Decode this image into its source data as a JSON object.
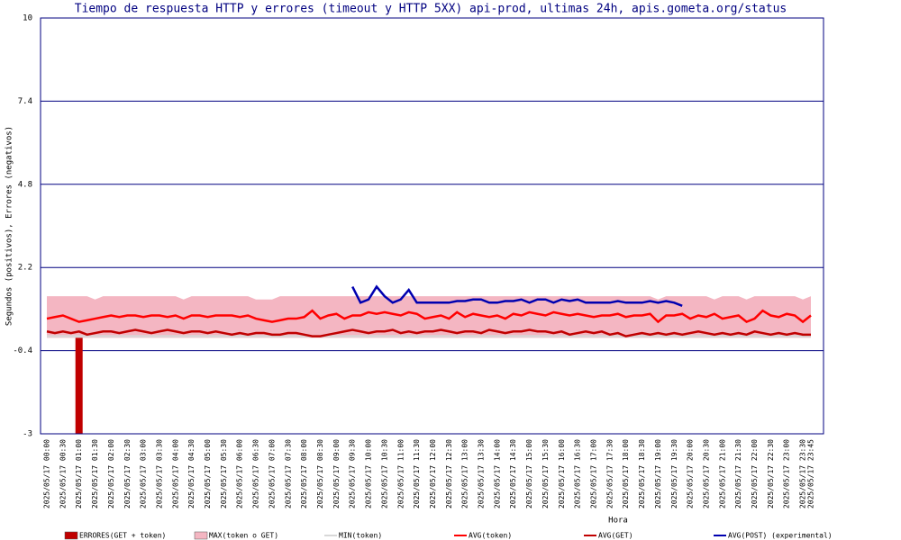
{
  "chart_data": {
    "type": "line",
    "title": "Tiempo de respuesta HTTP y errores (timeout y HTTP 5XX) api-prod, ultimas 24h, apis.gometa.org/status",
    "ylabel": "Segundos (positivos), Errores (negativos)",
    "xlabel": "Hora",
    "ylim": [
      -3,
      10
    ],
    "yticks": [
      -3,
      -0.4,
      2.2,
      4.8,
      7.4,
      10
    ],
    "grid": true,
    "categories": [
      "2025/05/17 00:00",
      null,
      "2025/05/17 00:30",
      null,
      "2025/05/17 01:00",
      null,
      "2025/05/17 01:30",
      null,
      "2025/05/17 02:00",
      null,
      "2025/05/17 02:30",
      null,
      "2025/05/17 03:00",
      null,
      "2025/05/17 03:30",
      null,
      "2025/05/17 04:00",
      null,
      "2025/05/17 04:30",
      null,
      "2025/05/17 05:00",
      null,
      "2025/05/17 05:30",
      null,
      "2025/05/17 06:00",
      null,
      "2025/05/17 06:30",
      null,
      "2025/05/17 07:00",
      null,
      "2025/05/17 07:30",
      null,
      "2025/05/17 08:00",
      null,
      "2025/05/17 08:30",
      null,
      "2025/05/17 09:00",
      null,
      "2025/05/17 09:30",
      null,
      "2025/05/17 10:00",
      null,
      "2025/05/17 10:30",
      null,
      "2025/05/17 11:00",
      null,
      "2025/05/17 11:30",
      null,
      "2025/05/17 12:00",
      null,
      "2025/05/17 12:30",
      null,
      "2025/05/17 13:00",
      null,
      "2025/05/17 13:30",
      null,
      "2025/05/17 14:00",
      null,
      "2025/05/17 14:30",
      null,
      "2025/05/17 15:00",
      null,
      "2025/05/17 15:30",
      null,
      "2025/05/17 16:00",
      null,
      "2025/05/17 16:30",
      null,
      "2025/05/17 17:00",
      null,
      "2025/05/17 17:30",
      null,
      "2025/05/17 18:00",
      null,
      "2025/05/17 18:30",
      null,
      "2025/05/17 19:00",
      null,
      "2025/05/17 19:30",
      null,
      "2025/05/17 20:00",
      null,
      "2025/05/17 20:30",
      null,
      "2025/05/17 21:00",
      null,
      "2025/05/17 21:30",
      null,
      "2025/05/17 22:00",
      null,
      "2025/05/17 22:30",
      null,
      "2025/05/17 23:00",
      null,
      "2025/05/17 23:30",
      "2025/05/17 23:45"
    ],
    "series": [
      {
        "name": "ERRORES(GET + token)",
        "mark": "bar",
        "color": "#c00000",
        "values": [
          0,
          0,
          0,
          0,
          -3,
          0,
          0,
          0,
          0,
          0,
          0,
          0,
          0,
          0,
          0,
          0,
          0,
          0,
          0,
          0,
          0,
          0,
          0,
          0,
          0,
          0,
          0,
          0,
          0,
          0,
          0,
          0,
          0,
          0,
          0,
          0,
          0,
          0,
          0,
          0,
          0,
          0,
          0,
          0,
          0,
          0,
          0,
          0,
          0,
          0,
          0,
          0,
          0,
          0,
          0,
          0,
          0,
          0,
          0,
          0,
          0,
          0,
          0,
          0,
          0,
          0,
          0,
          0,
          0,
          0,
          0,
          0,
          0,
          0,
          0,
          0,
          0,
          0,
          0,
          0,
          0,
          0,
          0,
          0,
          0,
          0,
          0,
          0,
          0,
          0,
          0,
          0,
          0,
          0,
          0,
          0
        ]
      },
      {
        "name": "MAX(token o GET)",
        "mark": "area",
        "color": "#f4b6c2",
        "values": [
          1.3,
          1.3,
          1.3,
          1.3,
          1.3,
          1.3,
          1.2,
          1.3,
          1.3,
          1.3,
          1.3,
          1.3,
          1.3,
          1.3,
          1.3,
          1.3,
          1.3,
          1.2,
          1.3,
          1.3,
          1.3,
          1.3,
          1.3,
          1.3,
          1.3,
          1.3,
          1.2,
          1.2,
          1.2,
          1.3,
          1.3,
          1.3,
          1.3,
          1.3,
          1.3,
          1.3,
          1.3,
          1.3,
          1.3,
          1.3,
          1.3,
          1.3,
          1.3,
          1.3,
          1.3,
          1.3,
          1.3,
          1.3,
          1.3,
          1.3,
          1.3,
          1.3,
          1.3,
          1.3,
          1.3,
          1.3,
          1.3,
          1.3,
          1.3,
          1.3,
          1.3,
          1.3,
          1.3,
          1.3,
          1.3,
          1.3,
          1.3,
          1.3,
          1.3,
          1.3,
          1.3,
          1.3,
          1.3,
          1.3,
          1.3,
          1.3,
          1.2,
          1.3,
          1.3,
          1.3,
          1.3,
          1.3,
          1.3,
          1.2,
          1.3,
          1.3,
          1.3,
          1.2,
          1.3,
          1.3,
          1.3,
          1.3,
          1.3,
          1.3,
          1.2,
          1.3
        ]
      },
      {
        "name": "MIN(token)",
        "mark": "line",
        "color": "#d8d8d8",
        "values": [
          0.05,
          0.05,
          0.05,
          0.05,
          0.05,
          0.05,
          0.05,
          0.05,
          0.05,
          0.05,
          0.05,
          0.05,
          0.05,
          0.05,
          0.05,
          0.05,
          0.05,
          0.05,
          0.05,
          0.05,
          0.05,
          0.05,
          0.05,
          0.05,
          0.05,
          0.05,
          0.05,
          0.05,
          0.05,
          0.05,
          0.05,
          0.05,
          0.05,
          0.05,
          0.05,
          0.05,
          0.05,
          0.05,
          0.05,
          0.05,
          0.05,
          0.05,
          0.05,
          0.05,
          0.05,
          0.05,
          0.05,
          0.05,
          0.05,
          0.05,
          0.05,
          0.05,
          0.05,
          0.05,
          0.05,
          0.05,
          0.05,
          0.05,
          0.05,
          0.05,
          0.05,
          0.05,
          0.05,
          0.05,
          0.05,
          0.05,
          0.05,
          0.05,
          0.05,
          0.05,
          0.05,
          0.05,
          0.05,
          0.05,
          0.05,
          0.05,
          0.05,
          0.05,
          0.05,
          0.05,
          0.05,
          0.05,
          0.05,
          0.05,
          0.05,
          0.05,
          0.05,
          0.05,
          0.05,
          0.05,
          0.05,
          0.05,
          0.05,
          0.05,
          0.05,
          0.05
        ]
      },
      {
        "name": "AVG(token)",
        "mark": "line",
        "color": "#ff0000",
        "values": [
          0.6,
          0.65,
          0.7,
          0.6,
          0.5,
          0.55,
          0.6,
          0.65,
          0.7,
          0.65,
          0.7,
          0.7,
          0.65,
          0.7,
          0.7,
          0.65,
          0.7,
          0.6,
          0.7,
          0.7,
          0.65,
          0.7,
          0.7,
          0.7,
          0.65,
          0.7,
          0.6,
          0.55,
          0.5,
          0.55,
          0.6,
          0.6,
          0.65,
          0.85,
          0.6,
          0.7,
          0.75,
          0.6,
          0.7,
          0.7,
          0.8,
          0.75,
          0.8,
          0.75,
          0.7,
          0.8,
          0.75,
          0.6,
          0.65,
          0.7,
          0.6,
          0.8,
          0.65,
          0.75,
          0.7,
          0.65,
          0.7,
          0.6,
          0.75,
          0.7,
          0.8,
          0.75,
          0.7,
          0.8,
          0.75,
          0.7,
          0.75,
          0.7,
          0.65,
          0.7,
          0.7,
          0.75,
          0.65,
          0.7,
          0.7,
          0.75,
          0.5,
          0.7,
          0.7,
          0.75,
          0.6,
          0.7,
          0.65,
          0.75,
          0.6,
          0.65,
          0.7,
          0.5,
          0.6,
          0.85,
          0.7,
          0.65,
          0.75,
          0.7,
          0.5,
          0.7
        ]
      },
      {
        "name": "AVG(GET)",
        "mark": "line",
        "color": "#c00000",
        "values": [
          0.2,
          0.15,
          0.2,
          0.15,
          0.2,
          0.1,
          0.15,
          0.2,
          0.2,
          0.15,
          0.2,
          0.25,
          0.2,
          0.15,
          0.2,
          0.25,
          0.2,
          0.15,
          0.2,
          0.2,
          0.15,
          0.2,
          0.15,
          0.1,
          0.15,
          0.1,
          0.15,
          0.15,
          0.1,
          0.1,
          0.15,
          0.15,
          0.1,
          0.05,
          0.05,
          0.1,
          0.15,
          0.2,
          0.25,
          0.2,
          0.15,
          0.2,
          0.2,
          0.25,
          0.15,
          0.2,
          0.15,
          0.2,
          0.2,
          0.25,
          0.2,
          0.15,
          0.2,
          0.2,
          0.15,
          0.25,
          0.2,
          0.15,
          0.2,
          0.2,
          0.25,
          0.2,
          0.2,
          0.15,
          0.2,
          0.1,
          0.15,
          0.2,
          0.15,
          0.2,
          0.1,
          0.15,
          0.05,
          0.1,
          0.15,
          0.1,
          0.15,
          0.1,
          0.15,
          0.1,
          0.15,
          0.2,
          0.15,
          0.1,
          0.15,
          0.1,
          0.15,
          0.1,
          0.2,
          0.15,
          0.1,
          0.15,
          0.1,
          0.15,
          0.1,
          0.1
        ]
      },
      {
        "name": "AVG(POST) (experimental)",
        "mark": "line",
        "color": "#0000b0",
        "values": [
          null,
          null,
          null,
          null,
          null,
          null,
          null,
          null,
          null,
          null,
          null,
          null,
          null,
          null,
          null,
          null,
          null,
          null,
          null,
          null,
          null,
          null,
          null,
          null,
          null,
          null,
          null,
          null,
          null,
          null,
          null,
          null,
          null,
          null,
          null,
          null,
          null,
          null,
          1.6,
          1.1,
          1.2,
          1.6,
          1.3,
          1.1,
          1.2,
          1.5,
          1.1,
          1.1,
          1.1,
          1.1,
          1.1,
          1.15,
          1.15,
          1.2,
          1.2,
          1.1,
          1.1,
          1.15,
          1.15,
          1.2,
          1.1,
          1.2,
          1.2,
          1.1,
          1.2,
          1.15,
          1.2,
          1.1,
          1.1,
          1.1,
          1.1,
          1.15,
          1.1,
          1.1,
          1.1,
          1.15,
          1.1,
          1.15,
          1.1,
          1.0,
          null,
          null,
          null,
          null,
          null,
          null,
          null,
          null,
          null,
          null,
          null,
          null,
          null,
          null,
          null,
          null
        ]
      }
    ]
  }
}
